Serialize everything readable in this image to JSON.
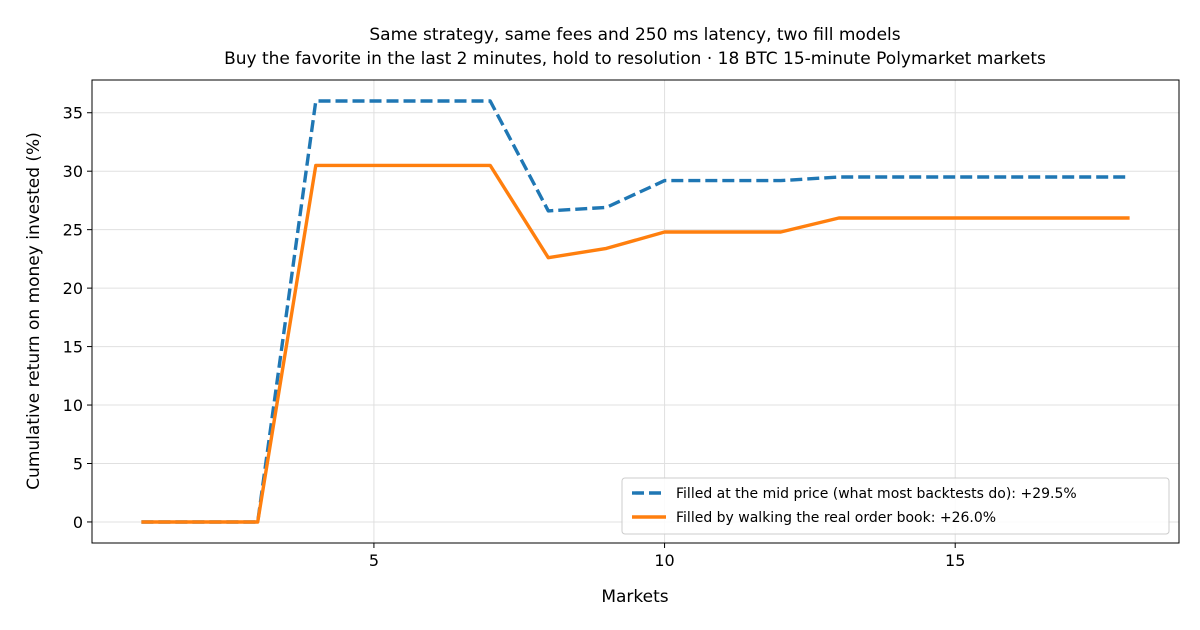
{
  "chart_data": {
    "type": "line",
    "title": "Same strategy, same fees and 250 ms latency, two fill models",
    "subtitle": "Buy the favorite in the last 2 minutes, hold to resolution · 18 BTC 15-minute Polymarket markets",
    "xlabel": "Markets",
    "ylabel": "Cumulative return on money invested (%)",
    "xlim": [
      0.15,
      18.85
    ],
    "ylim": [
      -1.8,
      37.8
    ],
    "xticks": [
      5,
      10,
      15
    ],
    "yticks": [
      0,
      5,
      10,
      15,
      20,
      25,
      30,
      35
    ],
    "grid": true,
    "legend_position": "lower-right",
    "x": [
      1,
      2,
      3,
      4,
      5,
      6,
      7,
      8,
      9,
      10,
      11,
      12,
      13,
      14,
      15,
      16,
      17,
      18
    ],
    "series": [
      {
        "name": "Filled at the mid price (what most backtests do): +29.5%",
        "color": "#1f77b4",
        "style": "dashed",
        "values": [
          0,
          0,
          0,
          36.0,
          36.0,
          36.0,
          36.0,
          26.6,
          26.9,
          29.2,
          29.2,
          29.2,
          29.5,
          29.5,
          29.5,
          29.5,
          29.5,
          29.5
        ]
      },
      {
        "name": "Filled by walking the real order book: +26.0%",
        "color": "#ff7f0e",
        "style": "solid",
        "values": [
          0,
          0,
          0,
          30.5,
          30.5,
          30.5,
          30.5,
          22.6,
          23.4,
          24.8,
          24.8,
          24.8,
          26.0,
          26.0,
          26.0,
          26.0,
          26.0,
          26.0
        ]
      }
    ]
  }
}
